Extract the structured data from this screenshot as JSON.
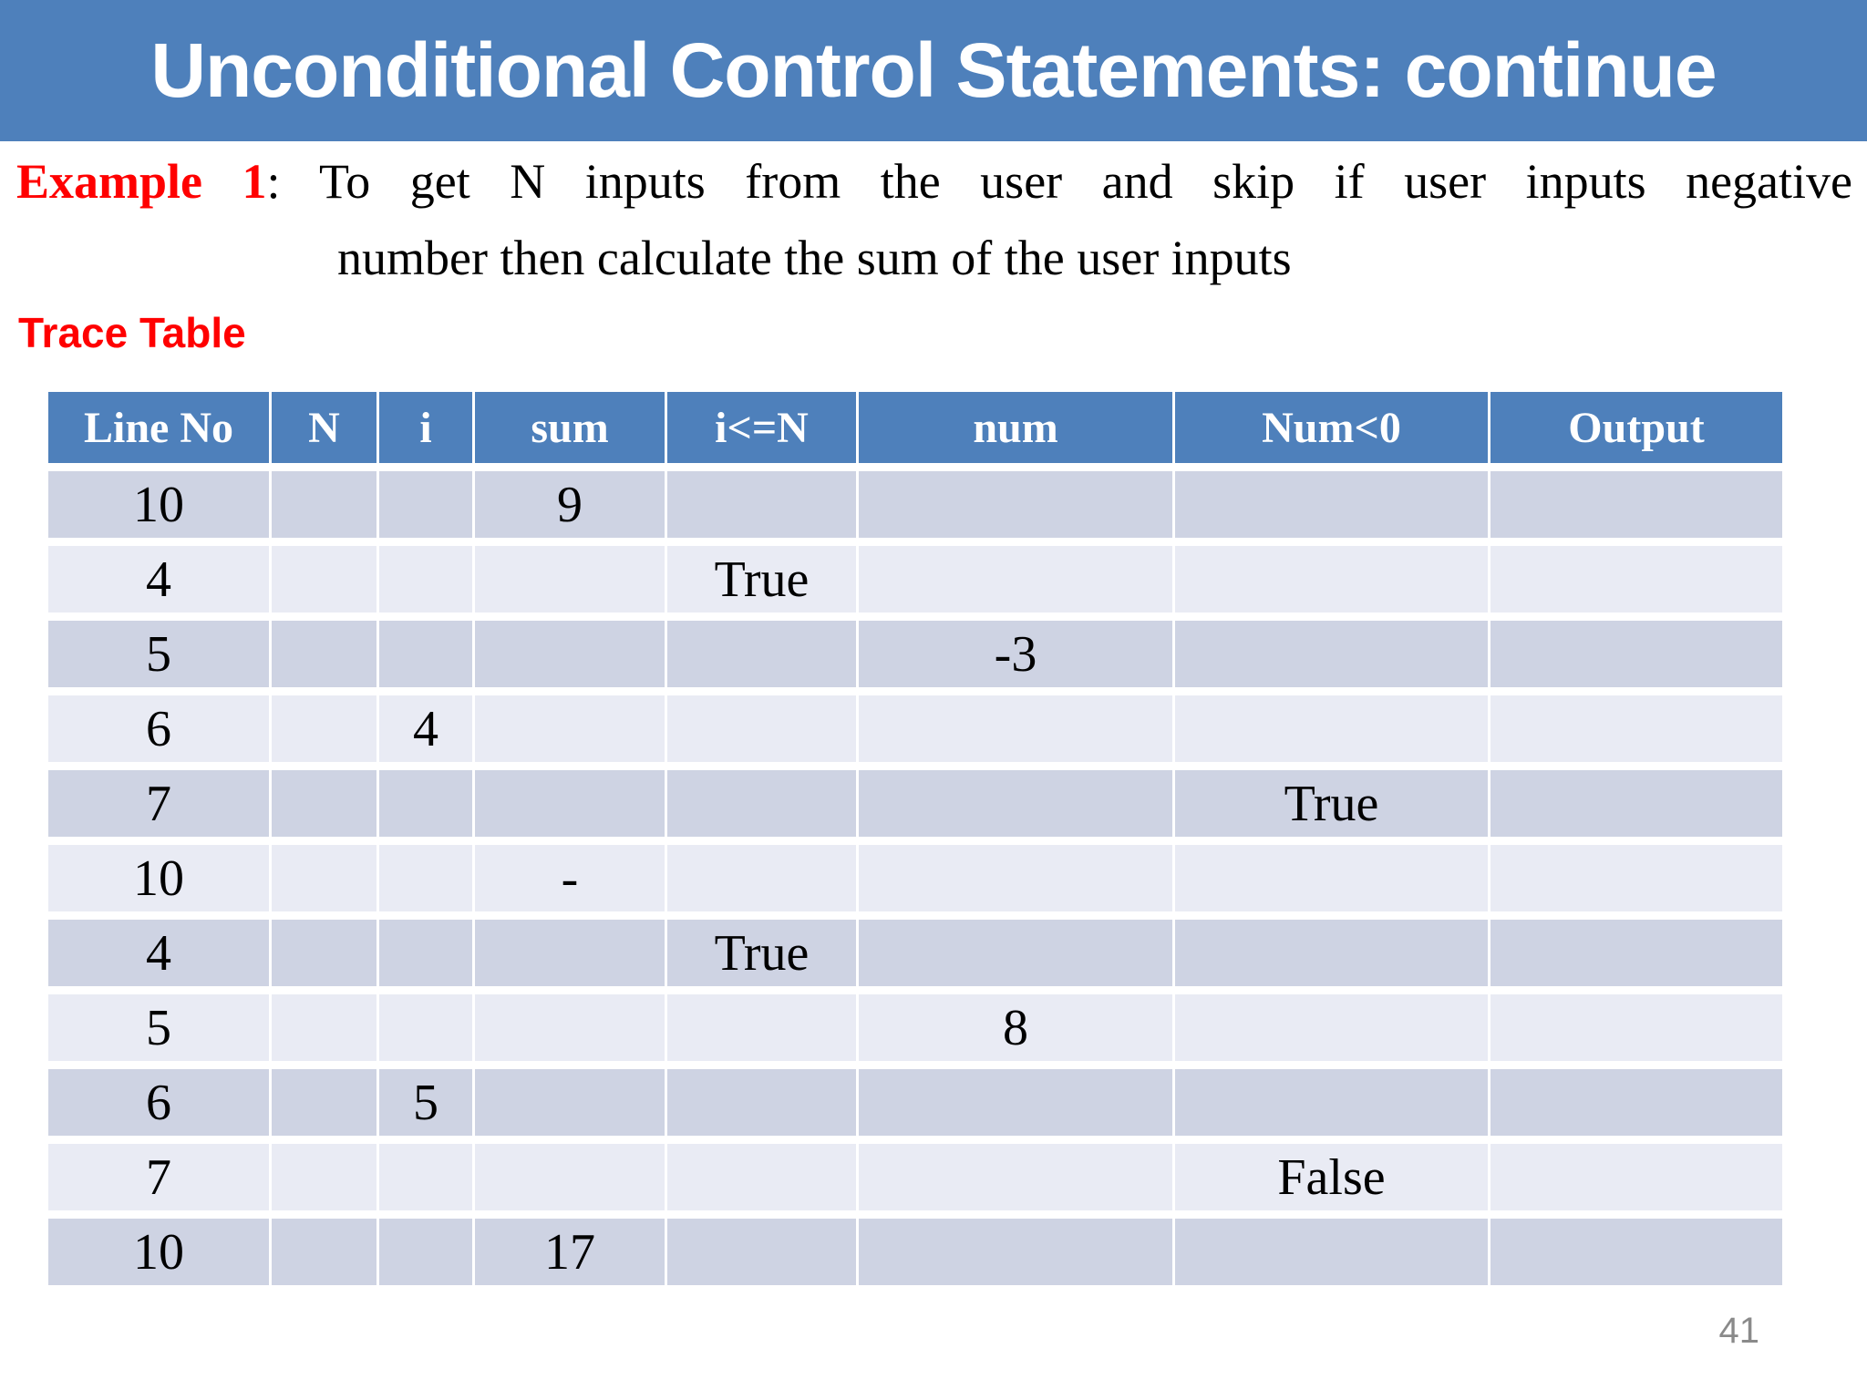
{
  "header": {
    "title": "Unconditional Control Statements: continue"
  },
  "example": {
    "label": "Example 1",
    "line1_rest": ": To get N inputs from the user and skip if user inputs negative",
    "line2": "number then calculate the sum of the user inputs"
  },
  "trace_table_label": "Trace Table",
  "table": {
    "columns": [
      "Line No",
      "N",
      "i",
      "sum",
      "i<=N",
      "num",
      "Num<0",
      "Output"
    ],
    "rows": [
      [
        "10",
        "",
        "",
        "9",
        "",
        "",
        "",
        ""
      ],
      [
        "4",
        "",
        "",
        "",
        "True",
        "",
        "",
        ""
      ],
      [
        "5",
        "",
        "",
        "",
        "",
        "-3",
        "",
        ""
      ],
      [
        "6",
        "",
        "4",
        "",
        "",
        "",
        "",
        ""
      ],
      [
        "7",
        "",
        "",
        "",
        "",
        "",
        "True",
        ""
      ],
      [
        "10",
        "",
        "",
        "-",
        "",
        "",
        "",
        ""
      ],
      [
        "4",
        "",
        "",
        "",
        "True",
        "",
        "",
        ""
      ],
      [
        "5",
        "",
        "",
        "",
        "",
        "8",
        "",
        ""
      ],
      [
        "6",
        "",
        "5",
        "",
        "",
        "",
        "",
        ""
      ],
      [
        "7",
        "",
        "",
        "",
        "",
        "",
        "False",
        ""
      ],
      [
        "10",
        "",
        "",
        "17",
        "",
        "",
        "",
        ""
      ]
    ]
  },
  "page_number": "41",
  "colors": {
    "header_blue": "#4e80bb",
    "row_dark": "#ced3e3",
    "row_light": "#e9ebf4",
    "accent_red": "#ff0000",
    "page_number_gray": "#8a8a8a"
  }
}
